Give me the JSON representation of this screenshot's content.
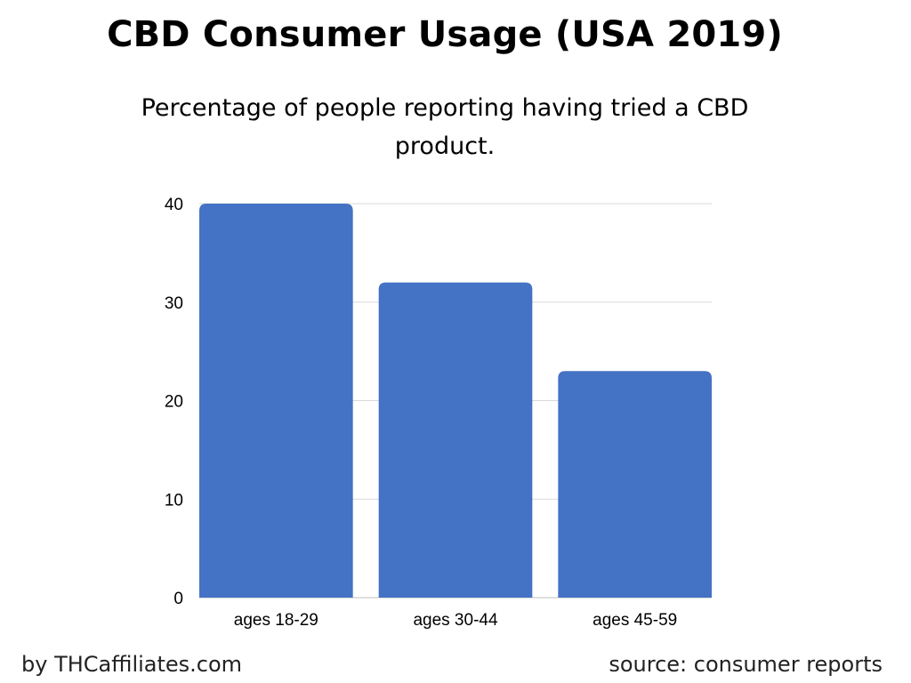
{
  "header": {
    "title": "CBD Consumer Usage (USA 2019)",
    "subtitle": "Percentage of people reporting having tried a CBD product."
  },
  "footer": {
    "left": "by THCaffiliates.com",
    "right": "source: consumer reports"
  },
  "colors": {
    "bar": "#4472C4",
    "grid": "#D9D9D9",
    "axis": "#BFBFBF"
  },
  "chart_data": {
    "type": "bar",
    "title": "CBD Consumer Usage (USA 2019)",
    "subtitle": "Percentage of people reporting having tried a CBD product.",
    "categories": [
      "ages 18-29",
      "ages 30-44",
      "ages 45-59"
    ],
    "values": [
      40,
      32,
      23
    ],
    "ylim": [
      0,
      40
    ],
    "yticks": [
      "0",
      "10",
      "20",
      "30",
      "40"
    ],
    "grid": true
  }
}
